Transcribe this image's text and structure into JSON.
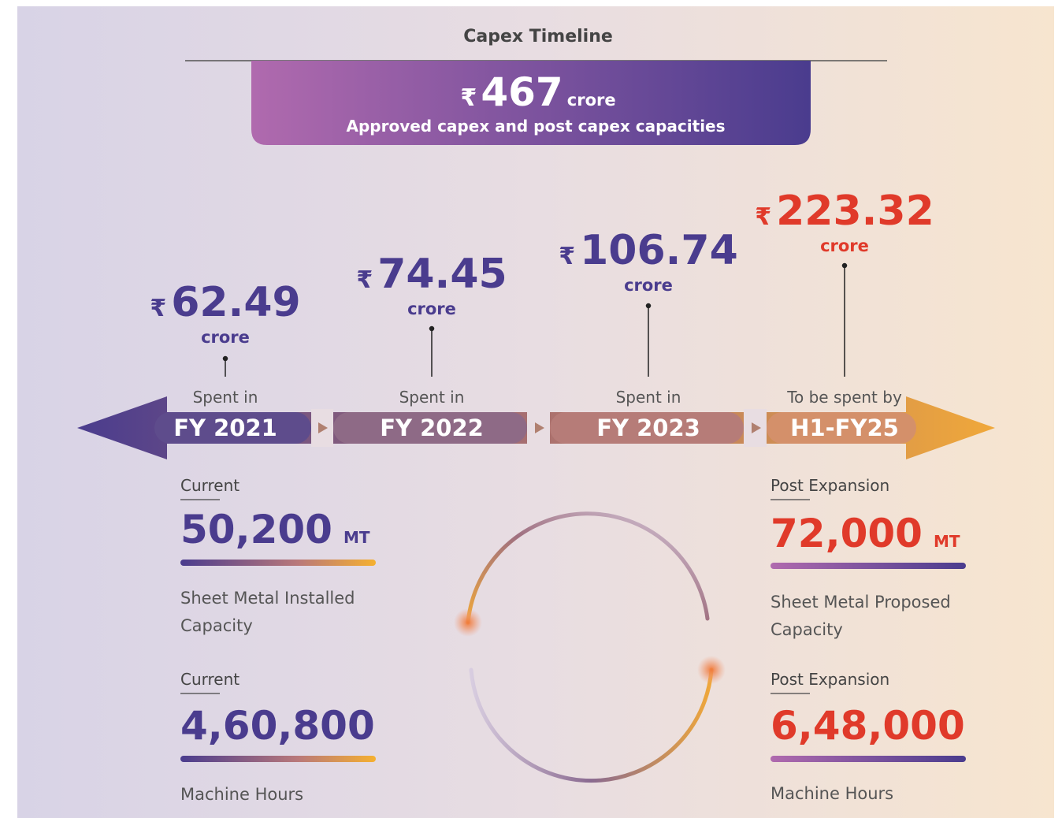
{
  "header": {
    "title": "Capex Timeline",
    "currency": "₹",
    "amount": "467",
    "unit": "crore",
    "subtitle": "Approved capex and post capex capacities"
  },
  "timeline": [
    {
      "currency": "₹",
      "amount": "62.49",
      "unit": "crore",
      "caption": "Spent in",
      "period": "FY 2021"
    },
    {
      "currency": "₹",
      "amount": "74.45",
      "unit": "crore",
      "caption": "Spent in",
      "period": "FY 2022"
    },
    {
      "currency": "₹",
      "amount": "106.74",
      "unit": "crore",
      "caption": "Spent in",
      "period": "FY 2023"
    },
    {
      "currency": "₹",
      "amount": "223.32",
      "unit": "crore",
      "caption": "To be spent by",
      "period": "H1-FY25"
    }
  ],
  "capacities": {
    "current": [
      {
        "label": "Current",
        "value": "50,200",
        "unit": "MT",
        "description": "Sheet Metal Installed Capacity"
      },
      {
        "label": "Current",
        "value": "4,60,800",
        "description": "Machine Hours"
      }
    ],
    "post": [
      {
        "label": "Post Expansion",
        "value": "72,000",
        "unit": "MT",
        "description": "Sheet Metal Proposed Capacity"
      },
      {
        "label": "Post Expansion",
        "value": "6,48,000",
        "description": "Machine Hours"
      }
    ]
  }
}
